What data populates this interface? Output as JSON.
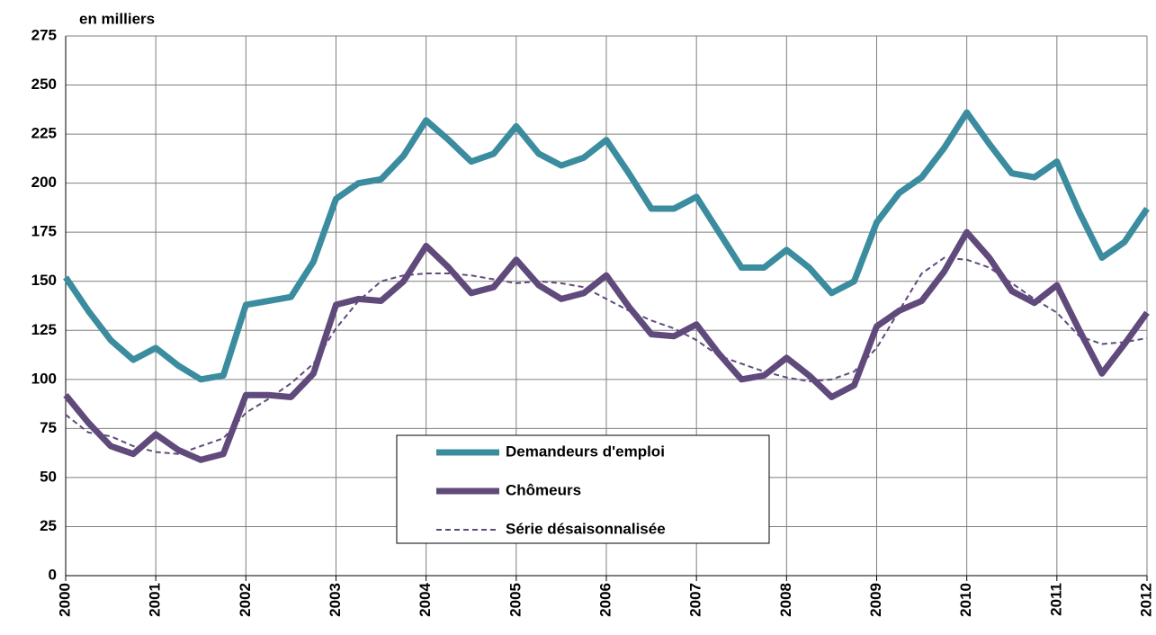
{
  "chart_data": {
    "type": "line",
    "y_label": "en  milliers",
    "x": [
      2000,
      2000.25,
      2000.5,
      2000.75,
      2001,
      2001.25,
      2001.5,
      2001.75,
      2002,
      2002.25,
      2002.5,
      2002.75,
      2003,
      2003.25,
      2003.5,
      2003.75,
      2004,
      2004.25,
      2004.5,
      2004.75,
      2005,
      2005.25,
      2005.5,
      2005.75,
      2006,
      2006.25,
      2006.5,
      2006.75,
      2007,
      2007.25,
      2007.5,
      2007.75,
      2008,
      2008.25,
      2008.5,
      2008.75,
      2009,
      2009.25,
      2009.5,
      2009.75,
      2010,
      2010.25,
      2010.5,
      2010.75,
      2011,
      2011.25,
      2011.5,
      2011.75,
      2012
    ],
    "series": [
      {
        "name": "Demandeurs d'emploi",
        "color": "#3a8c9e",
        "values": [
          152,
          135,
          120,
          110,
          116,
          107,
          100,
          102,
          138,
          140,
          142,
          160,
          192,
          200,
          202,
          214,
          232,
          222,
          211,
          215,
          229,
          215,
          209,
          213,
          222,
          205,
          187,
          187,
          193,
          175,
          157,
          157,
          166,
          157,
          144,
          150,
          180,
          195,
          203,
          218,
          236,
          220,
          205,
          203,
          211,
          185,
          162,
          170,
          187
        ]
      },
      {
        "name": "Chômeurs",
        "color": "#604a7b",
        "values": [
          92,
          78,
          66,
          62,
          72,
          64,
          59,
          62,
          92,
          92,
          91,
          103,
          138,
          141,
          140,
          150,
          168,
          157,
          144,
          147,
          161,
          148,
          141,
          144,
          153,
          137,
          123,
          122,
          128,
          113,
          100,
          102,
          111,
          102,
          91,
          97,
          127,
          135,
          140,
          155,
          175,
          162,
          145,
          139,
          148,
          125,
          103,
          118,
          134
        ]
      },
      {
        "name": "Série désaisonnalisée",
        "color": "#604a7b",
        "dash": true,
        "values": [
          82,
          73,
          71,
          66,
          63,
          62,
          66,
          70,
          83,
          90,
          98,
          108,
          126,
          140,
          150,
          153,
          154,
          154,
          153,
          151,
          149,
          150,
          149,
          147,
          141,
          135,
          130,
          126,
          120,
          112,
          108,
          104,
          101,
          99,
          100,
          104,
          116,
          135,
          154,
          162,
          161,
          157,
          149,
          141,
          134,
          122,
          118,
          119,
          121
        ]
      }
    ],
    "xlim": [
      2000,
      2012
    ],
    "xticks": [
      2000,
      2001,
      2002,
      2003,
      2004,
      2005,
      2006,
      2007,
      2008,
      2009,
      2010,
      2011,
      2012
    ],
    "ylim": [
      0,
      275
    ],
    "yticks": [
      0,
      25,
      50,
      75,
      100,
      125,
      150,
      175,
      200,
      225,
      250,
      275
    ],
    "grid": true,
    "legend": "center"
  }
}
